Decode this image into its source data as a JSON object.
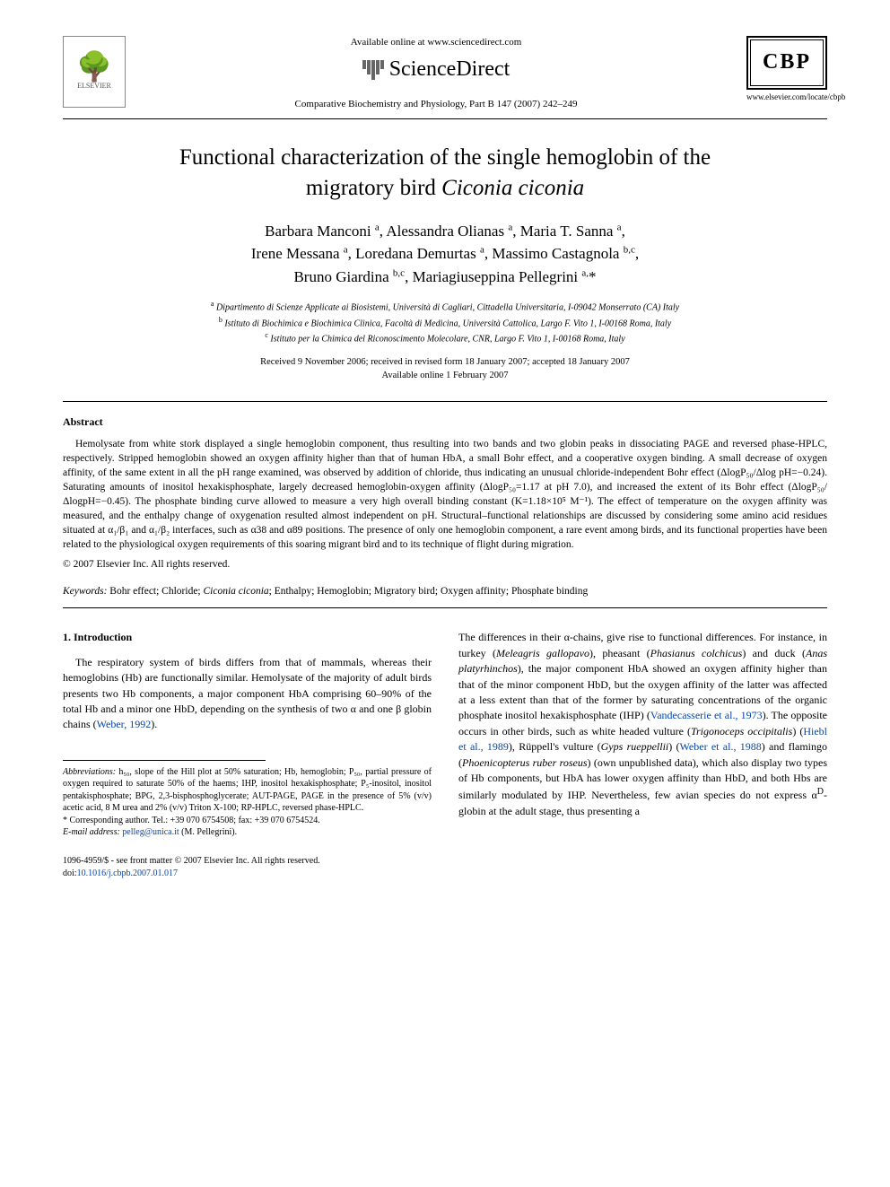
{
  "header": {
    "elsevier_label": "ELSEVIER",
    "avail_online": "Available online at www.sciencedirect.com",
    "sd_label": "ScienceDirect",
    "journal_ref": "Comparative Biochemistry and Physiology, Part B 147 (2007) 242–249",
    "cbp_label": "CBP",
    "cbp_url": "www.elsevier.com/locate/cbpb"
  },
  "title_line1": "Functional characterization of the single hemoglobin of the",
  "title_line2_pre": "migratory bird ",
  "title_line2_ital": "Ciconia ciconia",
  "authors_html": "Barbara Manconi <sup>a</sup>, Alessandra Olianas <sup>a</sup>, Maria T. Sanna <sup>a</sup>,<br>Irene Messana <sup>a</sup>, Loredana Demurtas <sup>a</sup>, Massimo Castagnola <sup>b,c</sup>,<br>Bruno Giardina <sup>b,c</sup>, Mariagiuseppina Pellegrini <sup>a,</sup>*",
  "affiliations": [
    {
      "sup": "a",
      "text": " Dipartimento di Scienze Applicate ai Biosistemi, Università di Cagliari, Cittadella Universitaria, I-09042 Monserrato (CA) Italy"
    },
    {
      "sup": "b",
      "text": " Istituto di Biochimica e Biochimica Clinica, Facoltà di Medicina, Università Cattolica, Largo F. Vito 1, I-00168 Roma, Italy"
    },
    {
      "sup": "c",
      "text": " Istituto per la Chimica del Riconoscimento Molecolare, CNR, Largo F. Vito 1, I-00168 Roma, Italy"
    }
  ],
  "dates_line1": "Received 9 November 2006; received in revised form 18 January 2007; accepted 18 January 2007",
  "dates_line2": "Available online 1 February 2007",
  "abstract_head": "Abstract",
  "abstract_body": "Hemolysate from white stork displayed a single hemoglobin component, thus resulting into two bands and two globin peaks in dissociating PAGE and reversed phase-HPLC, respectively. Stripped hemoglobin showed an oxygen affinity higher than that of human HbA, a small Bohr effect, and a cooperative oxygen binding. A small decrease of oxygen affinity, of the same extent in all the pH range examined, was observed by addition of chloride, thus indicating an unusual chloride-independent Bohr effect (ΔlogP₅₀/Δlog pH=−0.24). Saturating amounts of inositol hexakisphosphate, largely decreased hemoglobin-oxygen affinity (ΔlogP₅₀=1.17 at pH 7.0), and increased the extent of its Bohr effect (ΔlogP₅₀/ΔlogpH=−0.45). The phosphate binding curve allowed to measure a very high overall binding constant (K=1.18×10⁵ M⁻¹). The effect of temperature on the oxygen affinity was measured, and the enthalpy change of oxygenation resulted almost independent on pH. Structural–functional relationships are discussed by considering some amino acid residues situated at α₁/β₁ and α₁/β₂ interfaces, such as α38 and α89 positions. The presence of only one hemoglobin component, a rare event among birds, and its functional properties have been related to the physiological oxygen requirements of this soaring migrant bird and to its technique of flight during migration.",
  "copyright": "© 2007 Elsevier Inc. All rights reserved.",
  "keywords_label": "Keywords: ",
  "keywords_text": "Bohr effect; Chloride; Ciconia ciconia; Enthalpy; Hemoglobin; Migratory bird; Oxygen affinity; Phosphate binding",
  "intro_head": "1. Introduction",
  "col1_para": "The respiratory system of birds differs from that of mammals, whereas their hemoglobins (Hb) are functionally similar. Hemolysate of the majority of adult birds presents two Hb components, a major component HbA comprising 60–90% of the total Hb and a minor one HbD, depending on the synthesis of two α and one β globin chains (",
  "col1_link": "Weber, 1992",
  "col1_after": ").",
  "col2_text_chunks": {
    "c1": "The differences in their α-chains, give rise to functional differences. For instance, in turkey (",
    "sp1": "Meleagris gallopavo",
    "c2": "), pheasant (",
    "sp2": "Phasianus colchicus",
    "c3": ") and duck (",
    "sp3": "Anas platyrhinchos",
    "c4": "), the major component HbA showed an oxygen affinity higher than that of the minor component HbD, but the oxygen affinity of the latter was affected at a less extent than that of the former by saturating concentrations of the organic phosphate inositol hexakisphosphate (IHP) (",
    "l1": "Vandecasserie et al., 1973",
    "c5": "). The opposite occurs in other birds, such as white headed vulture (",
    "sp4": "Trigonoceps occipitalis",
    "c6": ") (",
    "l2": "Hiebl et al., 1989",
    "c7": "), Rüppell's vulture (",
    "sp5": "Gyps rueppellii",
    "c8": ") (",
    "l3": "Weber et al., 1988",
    "c9": ") and flamingo (",
    "sp6": "Phoenicopterus ruber roseus",
    "c10": ") (own unpublished data), which also display two types of Hb components, but HbA has lower oxygen affinity than HbD, and both Hbs are similarly modulated by IHP. Nevertheless, few avian species do not express α",
    "supD": "D",
    "c11": "-globin at the adult stage, thus presenting a"
  },
  "footnotes": {
    "abbrev_label": "Abbreviations: ",
    "abbrev_text": "h₅₀, slope of the Hill plot at 50% saturation; Hb, hemoglobin; P₅₀, partial pressure of oxygen required to saturate 50% of the haems; IHP, inositol hexakisphosphate; P₅-inositol, inositol pentakisphosphate; BPG, 2,3-bisphosphoglycerate; AUT-PAGE, PAGE in the presence of 5% (v/v) acetic acid, 8 M urea and 2% (v/v) Triton X-100; RP-HPLC, reversed phase-HPLC.",
    "corr_label": "* Corresponding author. ",
    "corr_text": "Tel.: +39 070 6754508; fax: +39 070 6754524.",
    "email_label": "E-mail address: ",
    "email_link": "pelleg@unica.it",
    "email_after": " (M. Pellegrini)."
  },
  "bottom": {
    "issn_line": "1096-4959/$ - see front matter © 2007 Elsevier Inc. All rights reserved.",
    "doi_pre": "doi:",
    "doi_link": "10.1016/j.cbpb.2007.01.017"
  },
  "colors": {
    "link": "#0645ad",
    "text": "#000000",
    "bg": "#ffffff"
  }
}
